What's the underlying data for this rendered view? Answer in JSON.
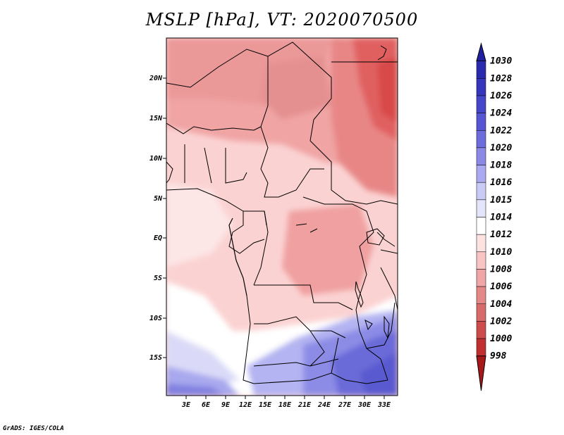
{
  "title": "MSLP [hPa], VT: 2020070500",
  "credit": "GrADS: IGES/COLA",
  "lat_labels": [
    "20N",
    "15N",
    "10N",
    "5N",
    "EQ",
    "5S",
    "10S",
    "15S"
  ],
  "lon_labels": [
    "3E",
    "6E",
    "9E",
    "12E",
    "15E",
    "18E",
    "21E",
    "24E",
    "27E",
    "30E",
    "33E"
  ],
  "colorbar": {
    "levels": [
      "1030",
      "1028",
      "1026",
      "1024",
      "1022",
      "1020",
      "1018",
      "1016",
      "1015",
      "1014",
      "1012",
      "1010",
      "1008",
      "1006",
      "1004",
      "1002",
      "1000",
      "998"
    ],
    "colors": [
      "#2020a0",
      "#2a2aae",
      "#3636bc",
      "#4646c8",
      "#5656d2",
      "#6c6cdc",
      "#8a8ae6",
      "#aaaaf0",
      "#cacaf6",
      "#e4e4fa",
      "#ffffff",
      "#fde2e2",
      "#f8c4c4",
      "#f0a6a6",
      "#e48888",
      "#d86a6a",
      "#cc4c4c",
      "#c03030",
      "#a81818"
    ]
  }
}
